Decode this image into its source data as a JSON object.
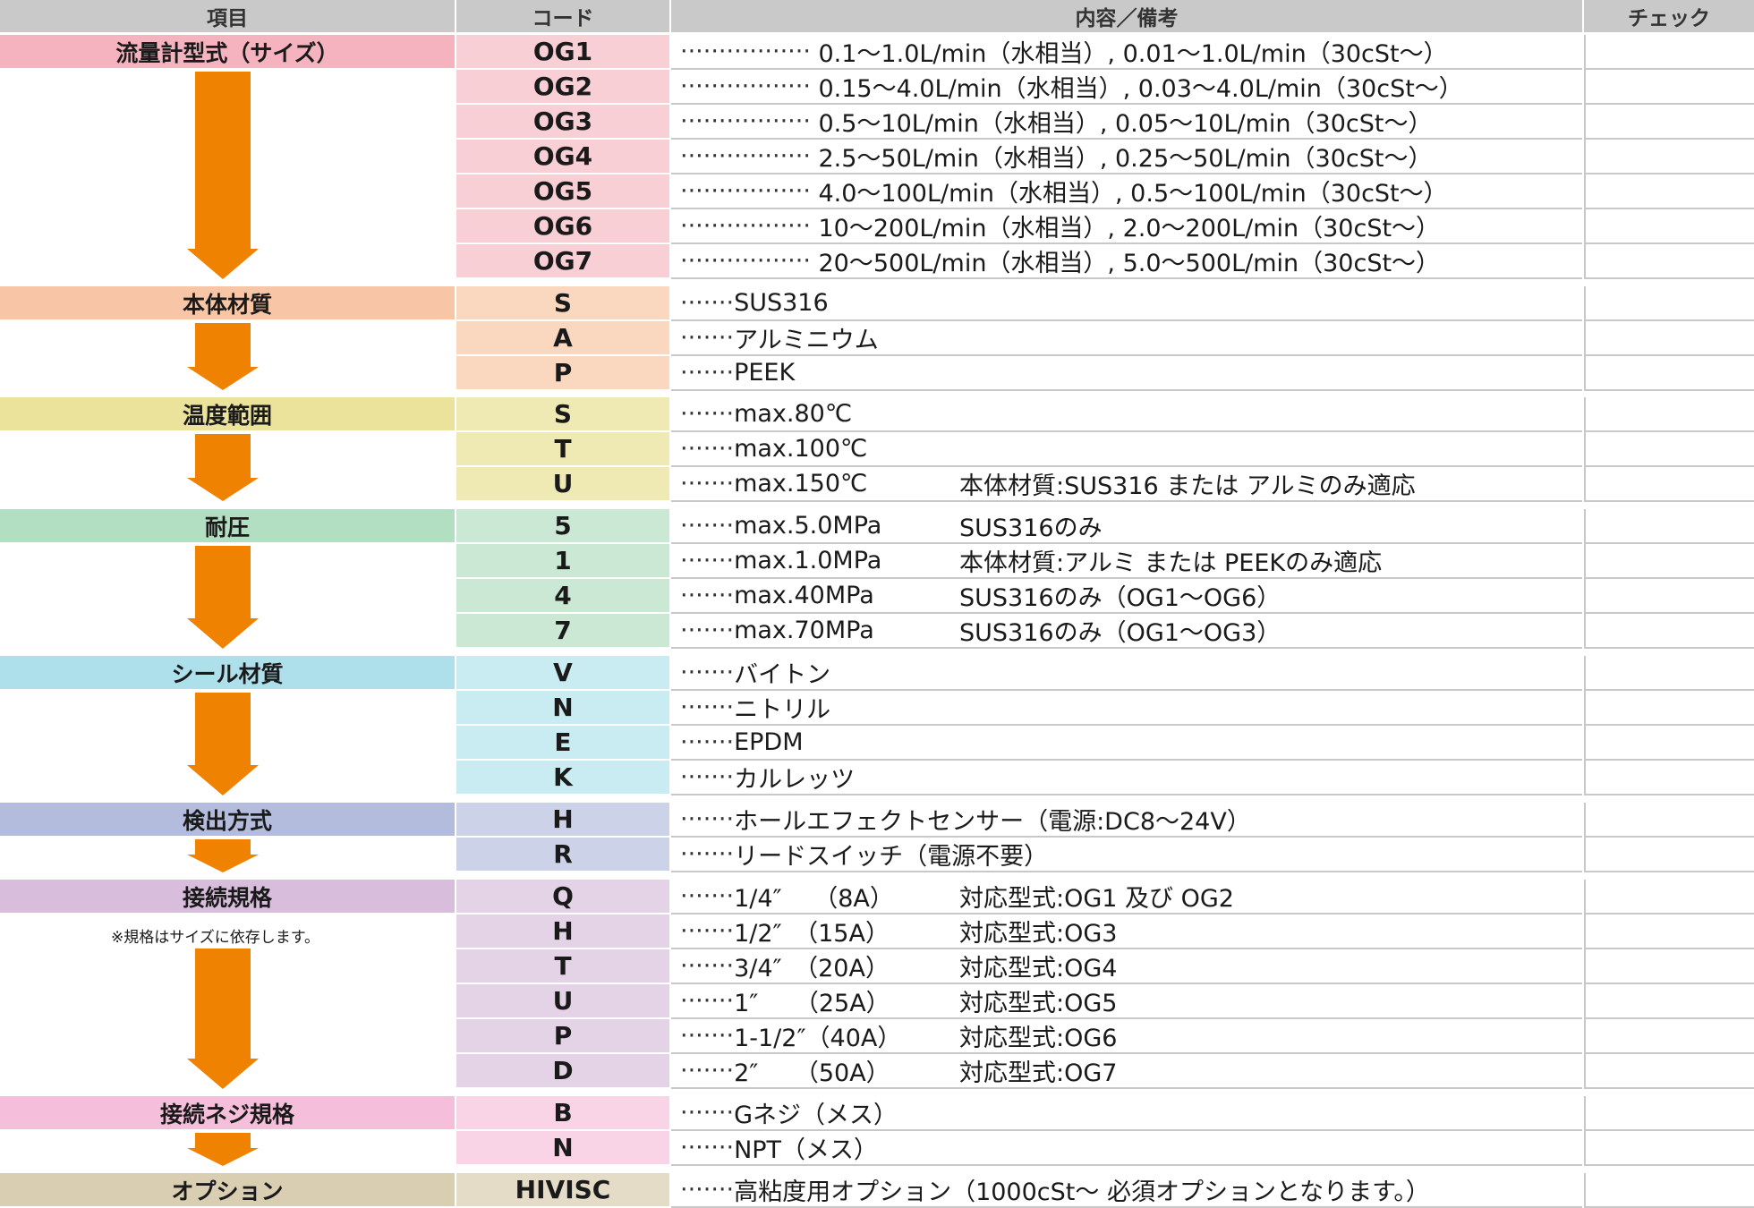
{
  "header": {
    "item": "項目",
    "code": "コード",
    "content": "内容／備考",
    "check": "チェック"
  },
  "dots_long": "·················",
  "dots_short": "·······",
  "groups": [
    {
      "label": "流量計型式（サイズ）",
      "color_label": "#f5b3bf",
      "color_code": "#f9cfd6",
      "rows": [
        {
          "code": "OG1",
          "text": " 0.1〜1.0L/min（水相当）, 0.01〜1.0L/min（30cSt〜）"
        },
        {
          "code": "OG2",
          "text": " 0.15〜4.0L/min（水相当）, 0.03〜4.0L/min（30cSt〜）"
        },
        {
          "code": "OG3",
          "text": " 0.5〜10L/min（水相当）, 0.05〜10L/min（30cSt〜）"
        },
        {
          "code": "OG4",
          "text": " 2.5〜50L/min（水相当）, 0.25〜50L/min（30cSt〜）"
        },
        {
          "code": "OG5",
          "text": " 4.0〜100L/min（水相当）, 0.5〜100L/min（30cSt〜）"
        },
        {
          "code": "OG6",
          "text": " 10〜200L/min（水相当）, 2.0〜200L/min（30cSt〜）"
        },
        {
          "code": "OG7",
          "text": " 20〜500L/min（水相当）, 5.0〜500L/min（30cSt〜）"
        }
      ]
    },
    {
      "label": "本体材質",
      "color_label": "#f8c6a6",
      "color_code": "#fad7bf",
      "rows": [
        {
          "code": "S",
          "text": "SUS316"
        },
        {
          "code": "A",
          "text": "アルミニウム"
        },
        {
          "code": "P",
          "text": "PEEK"
        }
      ]
    },
    {
      "label": "温度範囲",
      "color_label": "#ebe39c",
      "color_code": "#efe9b4",
      "rows": [
        {
          "code": "S",
          "text": "max.80℃"
        },
        {
          "code": "T",
          "text": "max.100℃"
        },
        {
          "code": "U",
          "text": "max.150℃",
          "note": "本体材質:SUS316 または アルミのみ適応"
        }
      ]
    },
    {
      "label": "耐圧",
      "color_label": "#b2dfc2",
      "color_code": "#cbe8d5",
      "rows": [
        {
          "code": "5",
          "text": "max.5.0MPa",
          "note": "SUS316のみ"
        },
        {
          "code": "1",
          "text": "max.1.0MPa",
          "note": "本体材質:アルミ または PEEKのみ適応"
        },
        {
          "code": "4",
          "text": "max.40MPa",
          "note": "SUS316のみ（OG1〜OG6）"
        },
        {
          "code": "7",
          "text": "max.70MPa",
          "note": "SUS316のみ（OG1〜OG3）"
        }
      ]
    },
    {
      "label": "シール材質",
      "color_label": "#aee0ec",
      "color_code": "#c9ebf2",
      "rows": [
        {
          "code": "V",
          "text": "バイトン"
        },
        {
          "code": "N",
          "text": "ニトリル"
        },
        {
          "code": "E",
          "text": "EPDM"
        },
        {
          "code": "K",
          "text": "カルレッツ"
        }
      ]
    },
    {
      "label": "検出方式",
      "color_label": "#b3bcdc",
      "color_code": "#ccd2e8",
      "rows": [
        {
          "code": "H",
          "text": "ホールエフェクトセンサー（電源:DC8〜24V）"
        },
        {
          "code": "R",
          "text": "リードスイッチ（電源不要）"
        }
      ]
    },
    {
      "label": "接続規格",
      "color_label": "#d8bedc",
      "color_code": "#e4d2e6",
      "footnote": "※規格はサイズに依存します。",
      "rows": [
        {
          "code": "Q",
          "text": "1/4″　 （8A）",
          "note": "対応型式:OG1 及び OG2"
        },
        {
          "code": "H",
          "text": "1/2″　（15A）",
          "note": "対応型式:OG3"
        },
        {
          "code": "T",
          "text": "3/4″　（20A）",
          "note": "対応型式:OG4"
        },
        {
          "code": "U",
          "text": "1″　　（25A）",
          "note": "対応型式:OG5"
        },
        {
          "code": "P",
          "text": "1-1/2″（40A）",
          "note": "対応型式:OG6"
        },
        {
          "code": "D",
          "text": "2″　　（50A）",
          "note": "対応型式:OG7"
        }
      ]
    },
    {
      "label": "接続ネジ規格",
      "color_label": "#f5bedb",
      "color_code": "#f9d4e7",
      "rows": [
        {
          "code": "B",
          "text": "Gネジ（メス）"
        },
        {
          "code": "N",
          "text": "NPT（メス）"
        }
      ]
    },
    {
      "label": "オプション",
      "color_label": "#d9cdb2",
      "color_code": "#e5dcc8",
      "rows": [
        {
          "code": "HIVISC",
          "text": "高粘度用オプション（1000cSt〜 必須オプションとなります。）"
        }
      ]
    }
  ],
  "colors": {
    "header_bg": "#c9c9c9",
    "arrow": "#ef8200",
    "grid": "#c8c8c8"
  }
}
